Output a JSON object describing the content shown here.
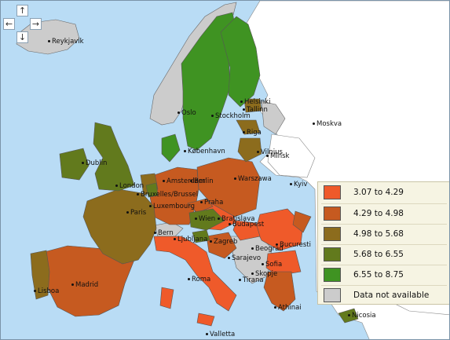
{
  "colors": {
    "sea": "#b9dcf5",
    "non_eu": "#ffffff",
    "c1": "#ef5a2a",
    "c2": "#c65a20",
    "c3": "#8c6c1d",
    "c4": "#627a1d",
    "c5": "#3f9322",
    "na": "#cccccc",
    "border": "#555555"
  },
  "legend": [
    {
      "color": "#ef5a2a",
      "label": "3.07  to  4.29",
      "icon": "swatch-class-1"
    },
    {
      "color": "#c65a20",
      "label": "4.29  to  4.98",
      "icon": "swatch-class-2"
    },
    {
      "color": "#8c6c1d",
      "label": "4.98  to  5.68",
      "icon": "swatch-class-3"
    },
    {
      "color": "#627a1d",
      "label": "5.68  to  6.55",
      "icon": "swatch-class-4"
    },
    {
      "color": "#3f9322",
      "label": "6.55  to  8.75",
      "icon": "swatch-class-5"
    },
    {
      "color": "#cccccc",
      "label": "Data not available",
      "icon": "swatch-na"
    }
  ],
  "nav": {
    "up": "↑",
    "down": "↓",
    "left": "←",
    "right": "→"
  },
  "cities": [
    "Reykjavik",
    "Helsinki",
    "Tallinn",
    "Oslo",
    "Stockholm",
    "Riga",
    "Moskva",
    "København",
    "Vilnius",
    "Minsk",
    "Dublin",
    "Amsterdam",
    "Berlin",
    "Warszawa",
    "London",
    "Bruxelles/Brussel",
    "Kyiv",
    "Luxembourg",
    "Praha",
    "Paris",
    "Wien",
    "Bratislava",
    "Bern",
    "Budapest",
    "Ljubljana",
    "Zagreb",
    "Beograd",
    "Bucuresti",
    "Sarajevo",
    "Sofia",
    "Skopje",
    "Madrid",
    "Roma",
    "Tirana",
    "Lisboa",
    "Athinai",
    "Nicosia",
    "Valletta"
  ]
}
